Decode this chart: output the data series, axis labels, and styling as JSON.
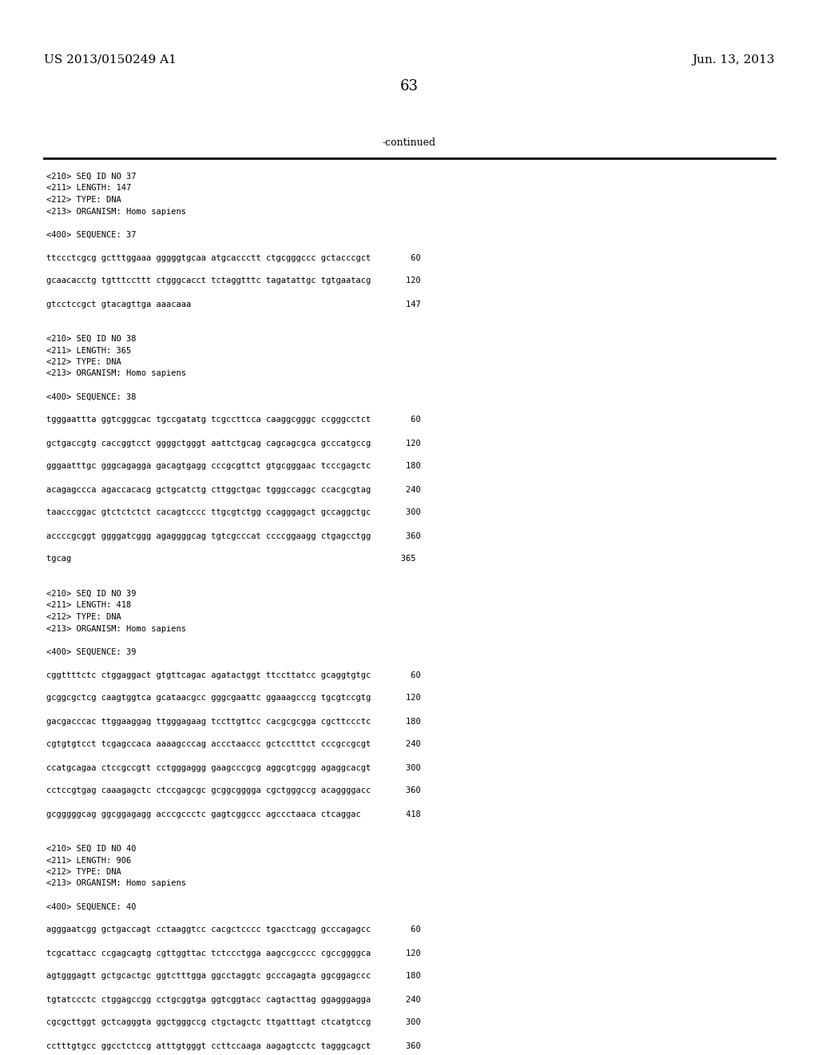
{
  "header_left": "US 2013/0150249 A1",
  "header_right": "Jun. 13, 2013",
  "page_number": "63",
  "continued_label": "-continued",
  "background_color": "#ffffff",
  "text_color": "#000000",
  "lines": [
    "<210> SEQ ID NO 37",
    "<211> LENGTH: 147",
    "<212> TYPE: DNA",
    "<213> ORGANISM: Homo sapiens",
    "",
    "<400> SEQUENCE: 37",
    "",
    "ttccctcgcg gctttggaaa gggggtgcaa atgcaccctt ctgcgggccc gctacccgct        60",
    "",
    "gcaacacctg tgtttccttt ctgggcacct tctaggtttc tagatattgc tgtgaatacg       120",
    "",
    "gtcctccgct gtacagttga aaacaaa                                           147",
    "",
    "",
    "<210> SEQ ID NO 38",
    "<211> LENGTH: 365",
    "<212> TYPE: DNA",
    "<213> ORGANISM: Homo sapiens",
    "",
    "<400> SEQUENCE: 38",
    "",
    "tgggaattta ggtcgggcac tgccgatatg tcgccttcca caaggcgggc ccgggcctct        60",
    "",
    "gctgaccgtg caccggtcct ggggctgggt aattctgcag cagcagcgca gcccatgccg       120",
    "",
    "gggaatttgc gggcagagga gacagtgagg cccgcgttct gtgcgggaac tcccgagctc       180",
    "",
    "acagagccca agaccacacg gctgcatctg cttggctgac tgggccaggc ccacgcgtag       240",
    "",
    "taacccggac gtctctctct cacagtcccc ttgcgtctgg ccagggagct gccaggctgc       300",
    "",
    "accccgcggt ggggatcggg agaggggcag tgtcgcccat ccccggaagg ctgagcctgg       360",
    "",
    "tgcag                                                                  365",
    "",
    "",
    "<210> SEQ ID NO 39",
    "<211> LENGTH: 418",
    "<212> TYPE: DNA",
    "<213> ORGANISM: Homo sapiens",
    "",
    "<400> SEQUENCE: 39",
    "",
    "cggttttctc ctggaggact gtgttcagac agatactggt ttccttatcc gcaggtgtgc        60",
    "",
    "gcggcgctcg caagtggtca gcataacgcc gggcgaattc ggaaagcccg tgcgtccgtg       120",
    "",
    "gacgacccac ttggaaggag ttgggagaag tccttgttcc cacgcgcgga cgcttccctc       180",
    "",
    "cgtgtgtcct tcgagccaca aaaagcccag accctaaccc gctcctttct cccgccgcgt       240",
    "",
    "ccatgcagaa ctccgccgtt cctgggaggg gaagcccgcg aggcgtcggg agaggcacgt       300",
    "",
    "cctccgtgag caaagagctc ctccgagcgc gcggcgggga cgctgggccg acaggggacc       360",
    "",
    "gcgggggcag ggcggagagg acccgccctc gagtcggccc agccctaaca ctcaggac         418",
    "",
    "",
    "<210> SEQ ID NO 40",
    "<211> LENGTH: 906",
    "<212> TYPE: DNA",
    "<213> ORGANISM: Homo sapiens",
    "",
    "<400> SEQUENCE: 40",
    "",
    "agggaatcgg gctgaccagt cctaaggtcc cacgctcccc tgacctcagg gcccagagcc        60",
    "",
    "tcgcattacc ccgagcagtg cgttggttac tctccctgga aagccgcccc cgccggggca       120",
    "",
    "agtgggagtt gctgcactgc ggtctttgga ggcctaggtc gcccagagta ggcggagccc       180",
    "",
    "tgtatccctc ctggagccgg cctgcggtga ggtcggtacc cagtacttag ggagggagga       240",
    "",
    "cgcgcttggt gctcagggta ggctgggccg ctgctagctc ttgatttagt ctcatgtccg       300",
    "",
    "cctttgtgcc ggcctctccg atttgtgggt ccttccaaga aagagtcctc tagggcagct       360"
  ]
}
